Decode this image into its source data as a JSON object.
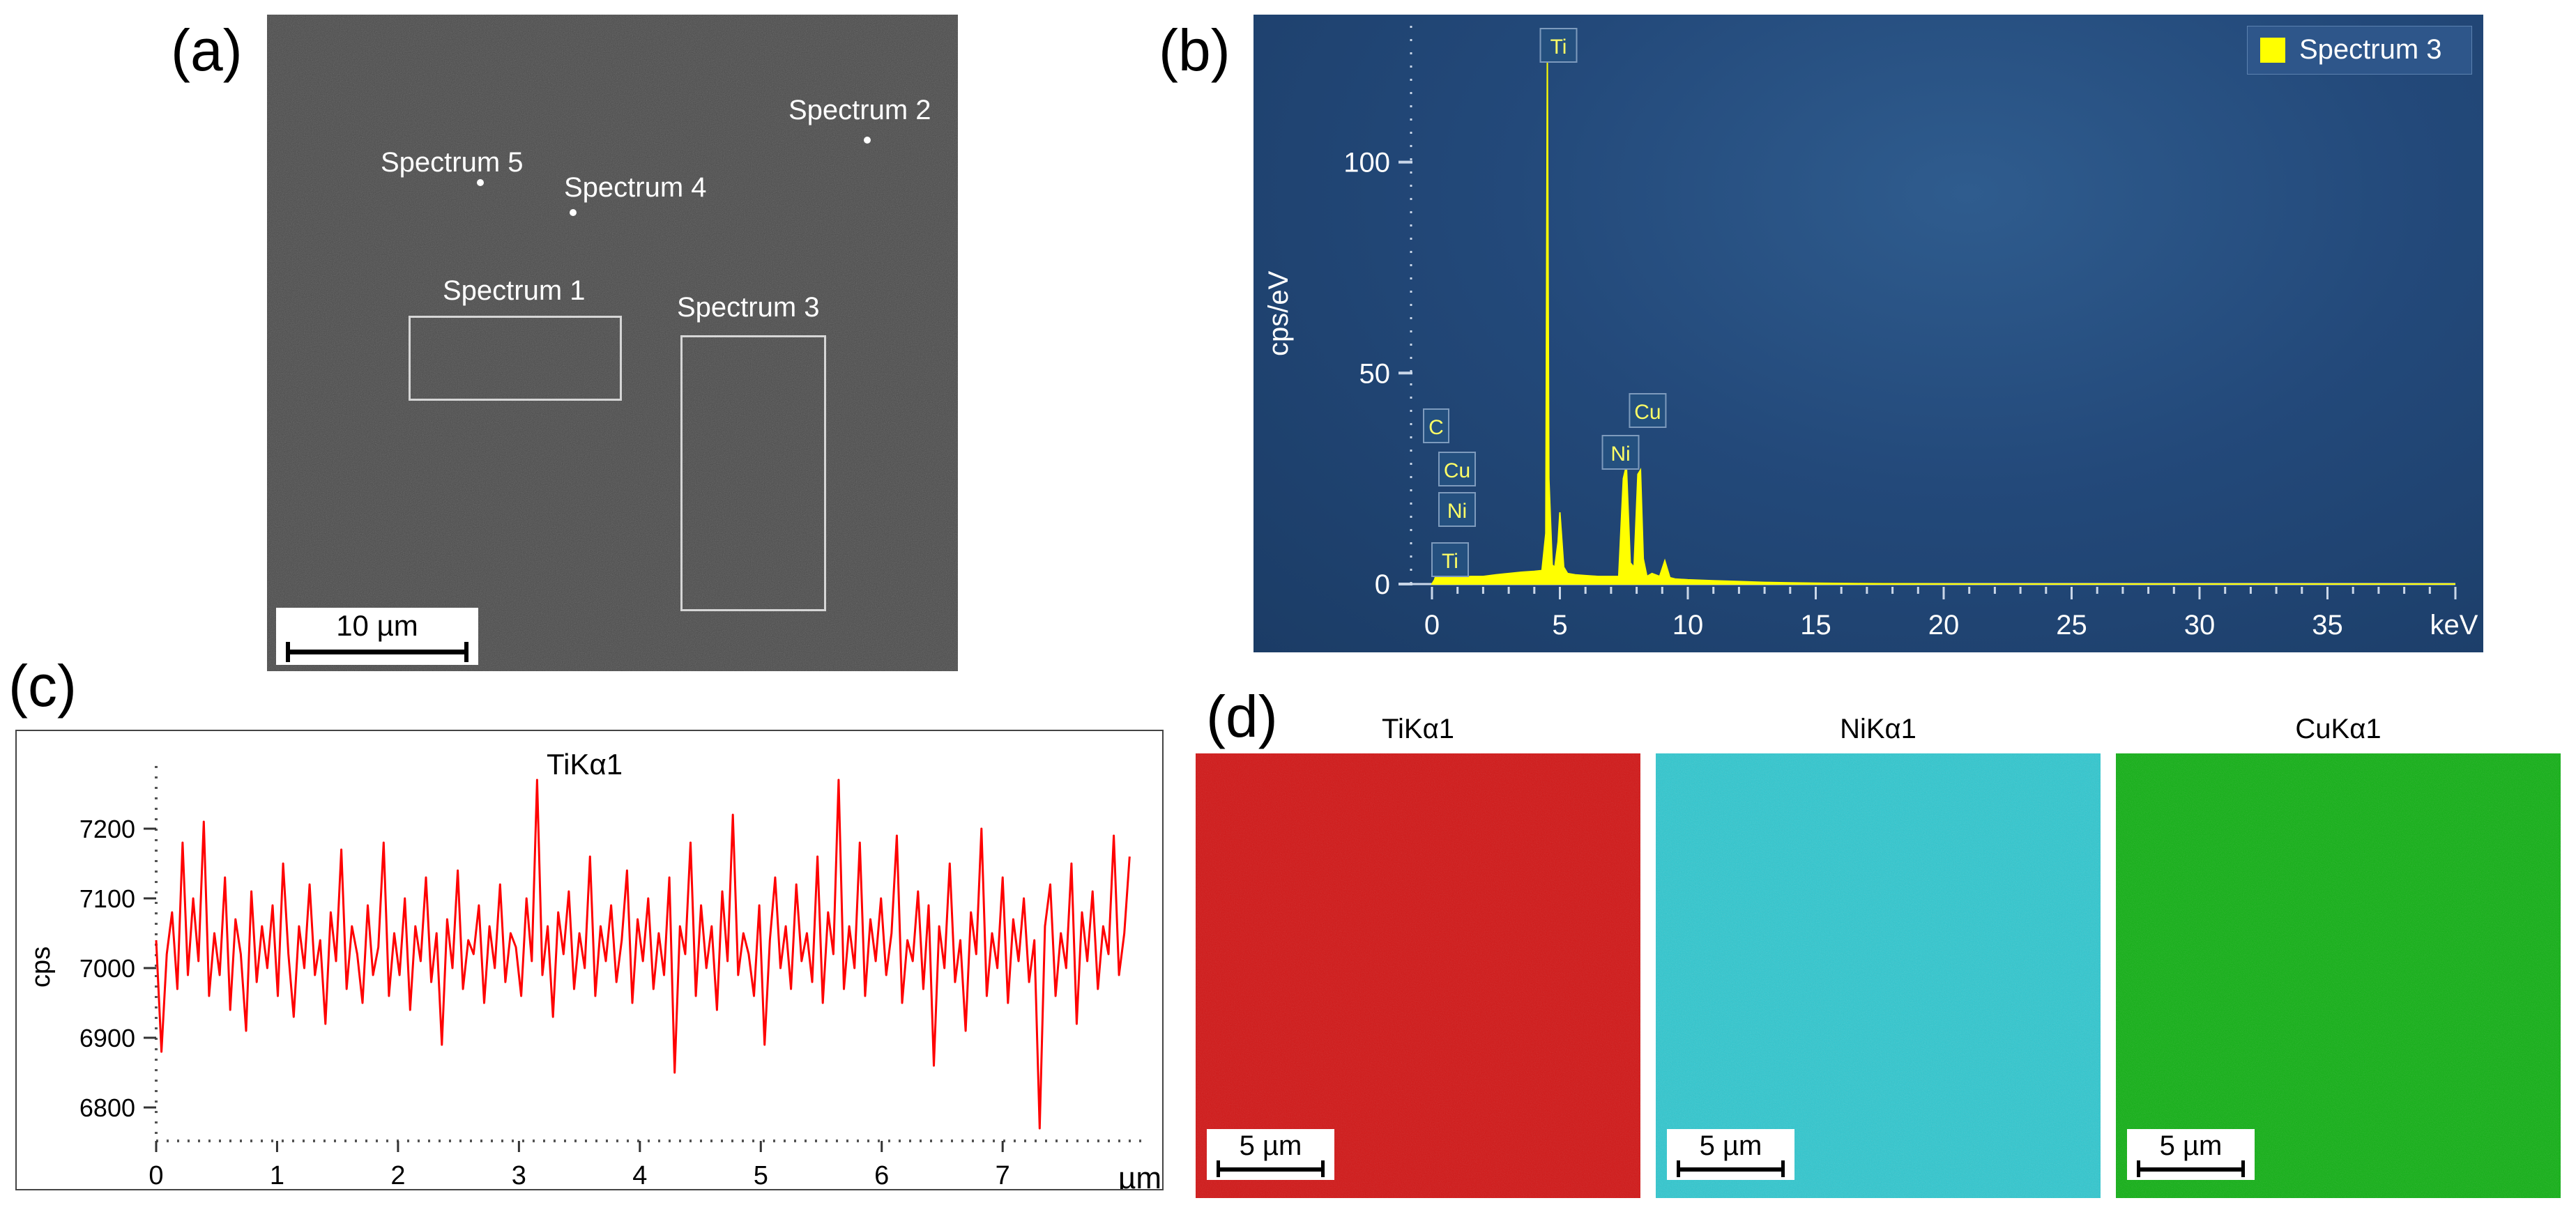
{
  "panel_labels": {
    "a": "(a)",
    "b": "(b)",
    "c": "(c)",
    "d": "(d)"
  },
  "sem": {
    "spectra": [
      "Spectrum 1",
      "Spectrum 2",
      "Spectrum 3",
      "Spectrum 4",
      "Spectrum 5"
    ],
    "scale_bar": "10 µm"
  },
  "chart_data": [
    {
      "type": "line",
      "title": "",
      "legend": [
        "Spectrum 3"
      ],
      "legend_placement": "top-right",
      "xlabel": "keV",
      "ylabel": "cps/eV",
      "xlim": [
        0,
        40
      ],
      "ylim": [
        0,
        130
      ],
      "xticks": [
        "0",
        "5",
        "10",
        "15",
        "20",
        "25",
        "30",
        "35"
      ],
      "yticks": [
        "0",
        "50",
        "100"
      ],
      "series": [
        {
          "name": "Spectrum 3",
          "color": "#ffff00",
          "x": [
            0,
            0.1,
            0.2,
            0.28,
            0.35,
            0.45,
            0.5,
            0.6,
            0.75,
            0.85,
            0.93,
            1.0,
            1.2,
            1.5,
            2.0,
            2.5,
            3.0,
            3.5,
            4.0,
            4.3,
            4.45,
            4.51,
            4.57,
            4.7,
            4.8,
            4.93,
            5.0,
            5.15,
            5.3,
            5.6,
            6.0,
            6.5,
            7.0,
            7.3,
            7.48,
            7.6,
            7.75,
            7.9,
            8.05,
            8.15,
            8.26,
            8.4,
            8.6,
            8.9,
            9.1,
            9.3,
            9.5,
            10,
            11,
            12,
            13,
            14,
            15,
            17,
            19,
            21,
            25,
            30,
            35,
            40
          ],
          "values": [
            0,
            1,
            3,
            4,
            2.5,
            4,
            3,
            4,
            5,
            2,
            3,
            2,
            1.5,
            1.8,
            1.8,
            2.2,
            2.5,
            2.8,
            3.0,
            3.2,
            12,
            124,
            25,
            4.5,
            4,
            10,
            17,
            4,
            2.5,
            2.2,
            2.0,
            1.8,
            1.8,
            1.8,
            25,
            28,
            5,
            4,
            26,
            27,
            6,
            1.8,
            2.5,
            1.8,
            5.5,
            1.5,
            1.2,
            1.0,
            0.8,
            0.6,
            0.4,
            0.3,
            0.2,
            0.1,
            0.05,
            0,
            0,
            0,
            0,
            0
          ]
        }
      ],
      "annotations": [
        {
          "label": "Ti",
          "x": 4.51
        },
        {
          "label": "C",
          "x": 0.28
        },
        {
          "label": "Cu",
          "x": 0.93
        },
        {
          "label": "Ni",
          "x": 0.85
        },
        {
          "label": "Ti",
          "x": 0.45
        },
        {
          "label": "Ni",
          "x": 7.48
        },
        {
          "label": "Cu",
          "x": 8.05
        }
      ]
    },
    {
      "type": "line",
      "title": "TiKα1",
      "xlabel": "µm",
      "ylabel": "cps",
      "xlim": [
        0,
        8.1
      ],
      "ylim": [
        6770,
        7280
      ],
      "xticks": [
        "0",
        "1",
        "2",
        "3",
        "4",
        "5",
        "6",
        "7"
      ],
      "yticks": [
        "6800",
        "6900",
        "7000",
        "7100",
        "7200"
      ],
      "series": [
        {
          "name": "TiKα1",
          "color": "#ff0000",
          "x_start": 0,
          "x_end": 8.05,
          "values": [
            7040,
            6880,
            7020,
            7080,
            6970,
            7180,
            6990,
            7100,
            7010,
            7210,
            6960,
            7050,
            6990,
            7130,
            6940,
            7070,
            7020,
            6910,
            7110,
            6980,
            7060,
            7000,
            7090,
            6960,
            7150,
            7020,
            6930,
            7060,
            7000,
            7120,
            6990,
            7040,
            6920,
            7080,
            7010,
            7170,
            6970,
            7060,
            7020,
            6950,
            7090,
            6990,
            7030,
            7180,
            6960,
            7050,
            6990,
            7100,
            6940,
            7060,
            7010,
            7130,
            6980,
            7050,
            6890,
            7070,
            7000,
            7140,
            6970,
            7040,
            7020,
            7090,
            6950,
            7060,
            7000,
            7120,
            6980,
            7050,
            7030,
            6960,
            7100,
            7010,
            7270,
            6990,
            7060,
            6930,
            7080,
            7020,
            7110,
            6970,
            7050,
            7000,
            7160,
            6960,
            7060,
            7010,
            7090,
            6980,
            7040,
            7140,
            6950,
            7070,
            7010,
            7100,
            6970,
            7050,
            6990,
            7130,
            6850,
            7060,
            7020,
            7180,
            6960,
            7090,
            7000,
            7060,
            6940,
            7110,
            7010,
            7220,
            6990,
            7050,
            7020,
            6960,
            7090,
            6890,
            7040,
            7130,
            7000,
            7060,
            6970,
            7120,
            7010,
            7050,
            6980,
            7160,
            6950,
            7080,
            7020,
            7270,
            6970,
            7060,
            7000,
            7180,
            6960,
            7070,
            7010,
            7100,
            6990,
            7050,
            7190,
            6950,
            7040,
            7010,
            7110,
            6970,
            7090,
            6860,
            7060,
            7000,
            7150,
            6980,
            7040,
            6910,
            7080,
            7020,
            7200,
            6960,
            7050,
            7000,
            7130,
            6950,
            7070,
            7010,
            7100,
            6980,
            7040,
            6770,
            7060,
            7120,
            6960,
            7050,
            7000,
            7150,
            6920,
            7080,
            7010,
            7110,
            6970,
            7060,
            7020,
            7190,
            6990,
            7050,
            7160
          ]
        }
      ]
    }
  ],
  "maps": [
    {
      "title": "TiKα1",
      "color": "#d11818",
      "scale": "5 µm"
    },
    {
      "title": "NiKα1",
      "color": "#2ec7cf",
      "scale": "5 µm"
    },
    {
      "title": "CuKα1",
      "color": "#12b015",
      "scale": "5 µm"
    }
  ]
}
